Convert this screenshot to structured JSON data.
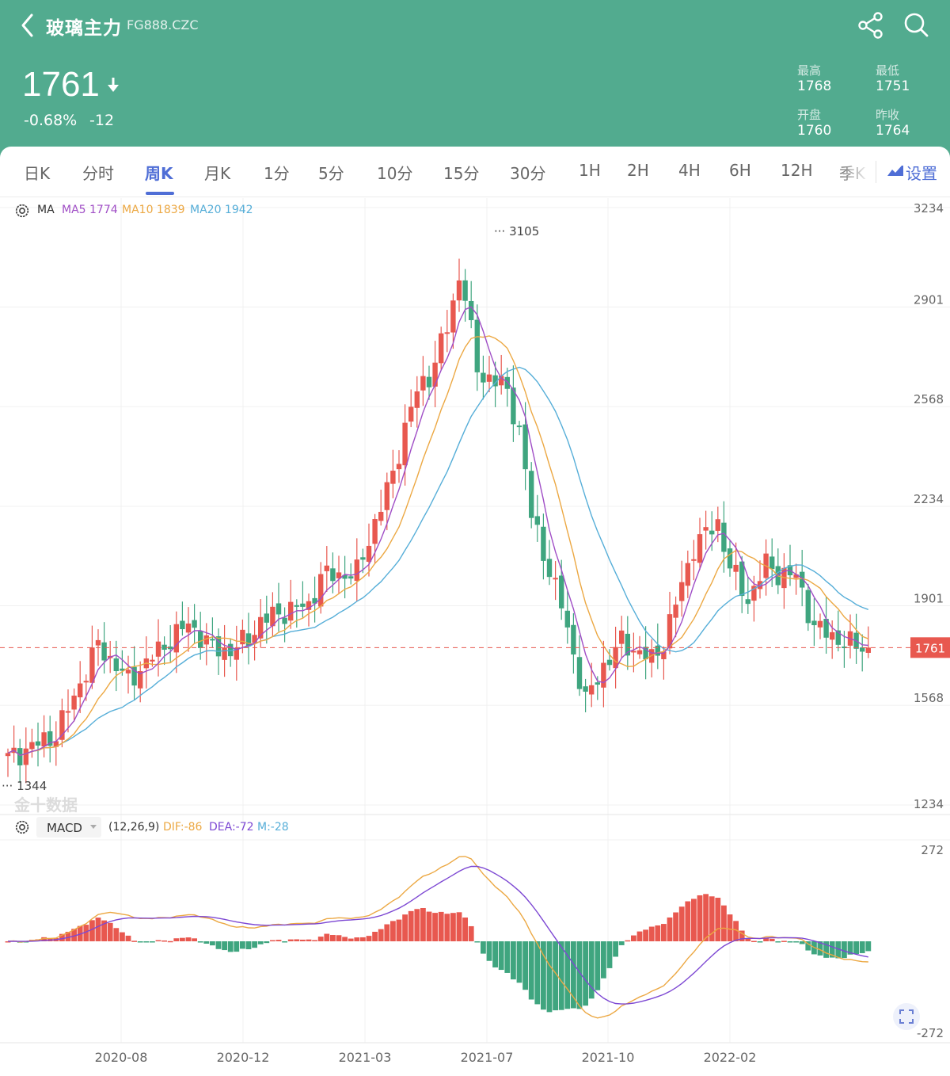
{
  "header": {
    "title": "玻璃主力",
    "code": "FG888.CZC",
    "price": "1761",
    "change_pct": "-0.68%",
    "change_abs": "-12",
    "stats": {
      "high_label": "最高",
      "high": "1768",
      "low_label": "最低",
      "low": "1751",
      "open_label": "开盘",
      "open": "1760",
      "prev_close_label": "昨收",
      "prev_close": "1764"
    },
    "icons": [
      "back-icon",
      "share-icon",
      "search-icon",
      "arrow-down-icon"
    ]
  },
  "tabs": [
    "日K",
    "分时",
    "周K",
    "月K",
    "1分",
    "5分",
    "10分",
    "15分",
    "30分",
    "1H",
    "2H",
    "4H",
    "6H",
    "12H",
    "季K"
  ],
  "active_tab": "周K",
  "settings_label": "设置",
  "legend": {
    "ma_label": "MA",
    "ma5": "MA5 1774",
    "ma10": "MA10 1839",
    "ma20": "MA20 1942",
    "macd_label": "MACD",
    "macd_params": "(12,26,9)",
    "dif": "DIF:-86",
    "dea": "DEA:-72",
    "m": "M:-28"
  },
  "watermark": "金十数据",
  "colors": {
    "header_bg": "#52ab8f",
    "up": "#e8584f",
    "down": "#3fa57f",
    "ma5": "#a04ec6",
    "ma10": "#eca843",
    "ma20": "#56aed8",
    "dif": "#eca843",
    "dea": "#7d48d3",
    "accent": "#4f6ed6"
  },
  "chart_data": {
    "type": "candlestick",
    "y_ticks": [
      3234,
      2901,
      2568,
      2234,
      1901,
      1568,
      1234
    ],
    "x_labels": [
      "2020-08",
      "2020-12",
      "2021-03",
      "2021-07",
      "2021-10",
      "2022-02"
    ],
    "max_marker": "3105",
    "min_marker": "1344",
    "last_price": "1761",
    "macd_ticks": [
      "272",
      "-272"
    ]
  }
}
